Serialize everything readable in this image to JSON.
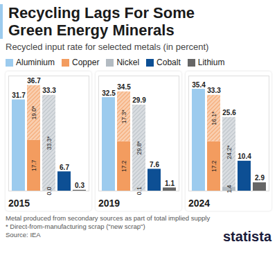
{
  "title": "Recycling Lags For Some Green Energy Minerals",
  "subtitle": "Recycled input rate for selected metals (in percent)",
  "notes": [
    "Metal produced from secondary sources as part of total implied supply",
    "* Direct-from-manufacturing scrap (\"new scrap\")"
  ],
  "source": "Source: IEA",
  "brand": "statista",
  "chart_data": [
    {
      "type": "bar",
      "title": "2015",
      "stacked": true,
      "data_labels": true,
      "tick_labels": false,
      "legend": "top",
      "categories": [
        "Aluminium",
        "Copper",
        "Nickel",
        "Cobalt",
        "Lithium"
      ],
      "colors": [
        "#9ccbee",
        "#f39c5f",
        "#b3bbc2",
        "#0d4f94",
        "#666666"
      ],
      "ylim": [
        0,
        40
      ],
      "yticks": [],
      "series": [
        {
          "values": [
            31.7,
            17.7,
            0.0,
            6.7,
            0.3
          ],
          "value_labels": [
            null,
            "17.7",
            "0.0",
            null,
            null
          ]
        },
        {
          "values": [
            null,
            19.0,
            33.3,
            null,
            null
          ],
          "value_labels": [
            null,
            "19.0*",
            "33.3*",
            null,
            null
          ],
          "line_style": "hatched"
        }
      ],
      "totals": [
        31.7,
        36.7,
        33.3,
        6.7,
        0.3
      ]
    },
    {
      "type": "bar",
      "title": "2019",
      "stacked": true,
      "data_labels": true,
      "tick_labels": false,
      "categories": [
        "Aluminium",
        "Copper",
        "Nickel",
        "Cobalt",
        "Lithium"
      ],
      "colors": [
        "#9ccbee",
        "#f39c5f",
        "#b3bbc2",
        "#0d4f94",
        "#666666"
      ],
      "ylim": [
        0,
        40
      ],
      "yticks": [],
      "series": [
        {
          "values": [
            32.5,
            17.2,
            0.1,
            7.6,
            1.1
          ],
          "value_labels": [
            null,
            "17.2",
            "0.1",
            null,
            null
          ]
        },
        {
          "values": [
            null,
            17.3,
            29.8,
            null,
            null
          ],
          "value_labels": [
            null,
            "17.3*",
            "29.8*",
            null,
            null
          ],
          "line_style": "hatched"
        }
      ],
      "totals": [
        32.5,
        34.5,
        29.9,
        7.6,
        1.1
      ]
    },
    {
      "type": "bar",
      "title": "2024",
      "stacked": true,
      "data_labels": true,
      "tick_labels": false,
      "categories": [
        "Aluminium",
        "Copper",
        "Nickel",
        "Cobalt",
        "Lithium"
      ],
      "colors": [
        "#9ccbee",
        "#f39c5f",
        "#b3bbc2",
        "#0d4f94",
        "#666666"
      ],
      "ylim": [
        0,
        40
      ],
      "yticks": [],
      "series": [
        {
          "values": [
            35.4,
            17.2,
            1.4,
            10.4,
            2.9
          ],
          "value_labels": [
            null,
            "17.2",
            "1.4",
            null,
            null
          ]
        },
        {
          "values": [
            null,
            16.1,
            24.2,
            null,
            null
          ],
          "value_labels": [
            null,
            "16.1*",
            "24.2*",
            null,
            null
          ],
          "line_style": "hatched"
        }
      ],
      "totals": [
        35.4,
        33.3,
        25.6,
        10.4,
        2.9
      ]
    }
  ]
}
